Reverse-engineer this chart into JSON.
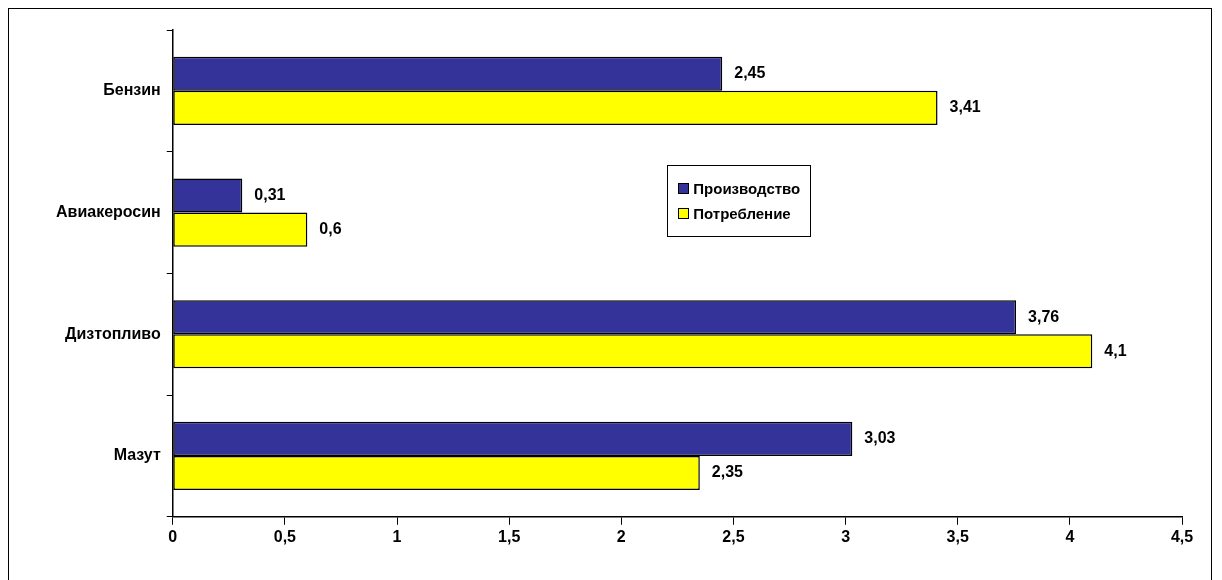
{
  "chart_data": {
    "type": "bar",
    "orientation": "horizontal",
    "categories": [
      "Бензин",
      "Авиакеросин",
      "Дизтопливо",
      "Мазут"
    ],
    "series": [
      {
        "name": "Производство",
        "color": "#333399",
        "values": [
          2.45,
          0.31,
          3.76,
          3.03
        ],
        "value_labels": [
          "2,45",
          "0,31",
          "3,76",
          "3,03"
        ]
      },
      {
        "name": "Потребление",
        "color": "#ffff00",
        "values": [
          3.41,
          0.6,
          4.1,
          2.35
        ],
        "value_labels": [
          "3,41",
          "0,6",
          "4,1",
          "2,35"
        ]
      }
    ],
    "xlim": [
      0,
      4.5
    ],
    "xticks": [
      0,
      {
        "value": 0.5,
        "label": "0,5"
      },
      1,
      {
        "value": 1.5,
        "label": "1,5"
      },
      2,
      {
        "value": 2.5,
        "label": "2,5"
      },
      3,
      {
        "value": 3.5,
        "label": "3,5"
      },
      4,
      {
        "value": 4.5,
        "label": "4,5"
      }
    ],
    "grid": false,
    "legend": "top right"
  }
}
